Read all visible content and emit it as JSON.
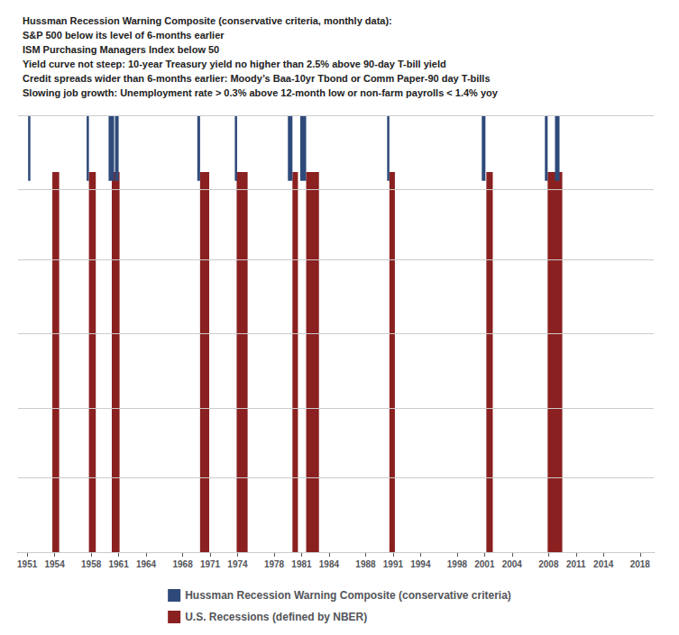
{
  "chart_data": {
    "type": "timeline",
    "title": "Hussman Recession Warning Composite (conservative criteria, monthly data):\nS&P 500 below its level of 6-months earlier\nISM Purchasing Managers Index below 50\nYield curve not steep: 10-year Treasury yield no higher than 2.5% above 90-day T-bill yield\nCredit spreads wider than 6-months earlier: Moody’s Baa-10yr Tbond or Comm Paper-90 day T-bills\nSlowing job growth: Unemployment rate > 0.3% above 12-month low or non-farm payrolls < 1.4% yoy",
    "xlim": [
      1950.0,
      2019.5
    ],
    "xticks": [
      1951,
      1954,
      1958,
      1961,
      1964,
      1968,
      1971,
      1974,
      1978,
      1981,
      1984,
      1988,
      1991,
      1994,
      1998,
      2001,
      2004,
      2008,
      2011,
      2014,
      2018
    ],
    "ylim": [
      0,
      1
    ],
    "yticks": [
      0.0,
      0.166,
      0.333,
      0.5,
      0.666,
      0.833,
      1.0
    ],
    "tick_labels": "x",
    "grid": true,
    "legend": "bottom",
    "series": [
      {
        "name": "Hussman Recession Warning Composite (conservative criteria)",
        "color": "#2E4A7A",
        "y_range": [
          0.85,
          1.0
        ],
        "values": [
          [
            1951.1,
            1951.35
          ],
          [
            1957.5,
            1957.75
          ],
          [
            1959.9,
            1960.5
          ],
          [
            1960.6,
            1961.0
          ],
          [
            1969.6,
            1969.9
          ],
          [
            1973.7,
            1973.95
          ],
          [
            1979.5,
            1980.0
          ],
          [
            1980.85,
            1981.5
          ],
          [
            1990.35,
            1990.6
          ],
          [
            2000.7,
            2001.1
          ],
          [
            2007.6,
            2007.9
          ],
          [
            2008.7,
            2009.2
          ]
        ]
      },
      {
        "name": "U.S. Recessions (defined by NBER)",
        "color": "#8B2020",
        "y_range": [
          0.0,
          0.87
        ],
        "values": [
          [
            1953.75,
            1954.5
          ],
          [
            1957.75,
            1958.5
          ],
          [
            1960.25,
            1961.1
          ],
          [
            1969.9,
            1970.9
          ],
          [
            1973.9,
            1975.1
          ],
          [
            1980.0,
            1980.6
          ],
          [
            1981.5,
            1982.9
          ],
          [
            1990.6,
            1991.2
          ],
          [
            2001.2,
            2001.9
          ],
          [
            2007.9,
            2009.5
          ]
        ]
      }
    ]
  }
}
